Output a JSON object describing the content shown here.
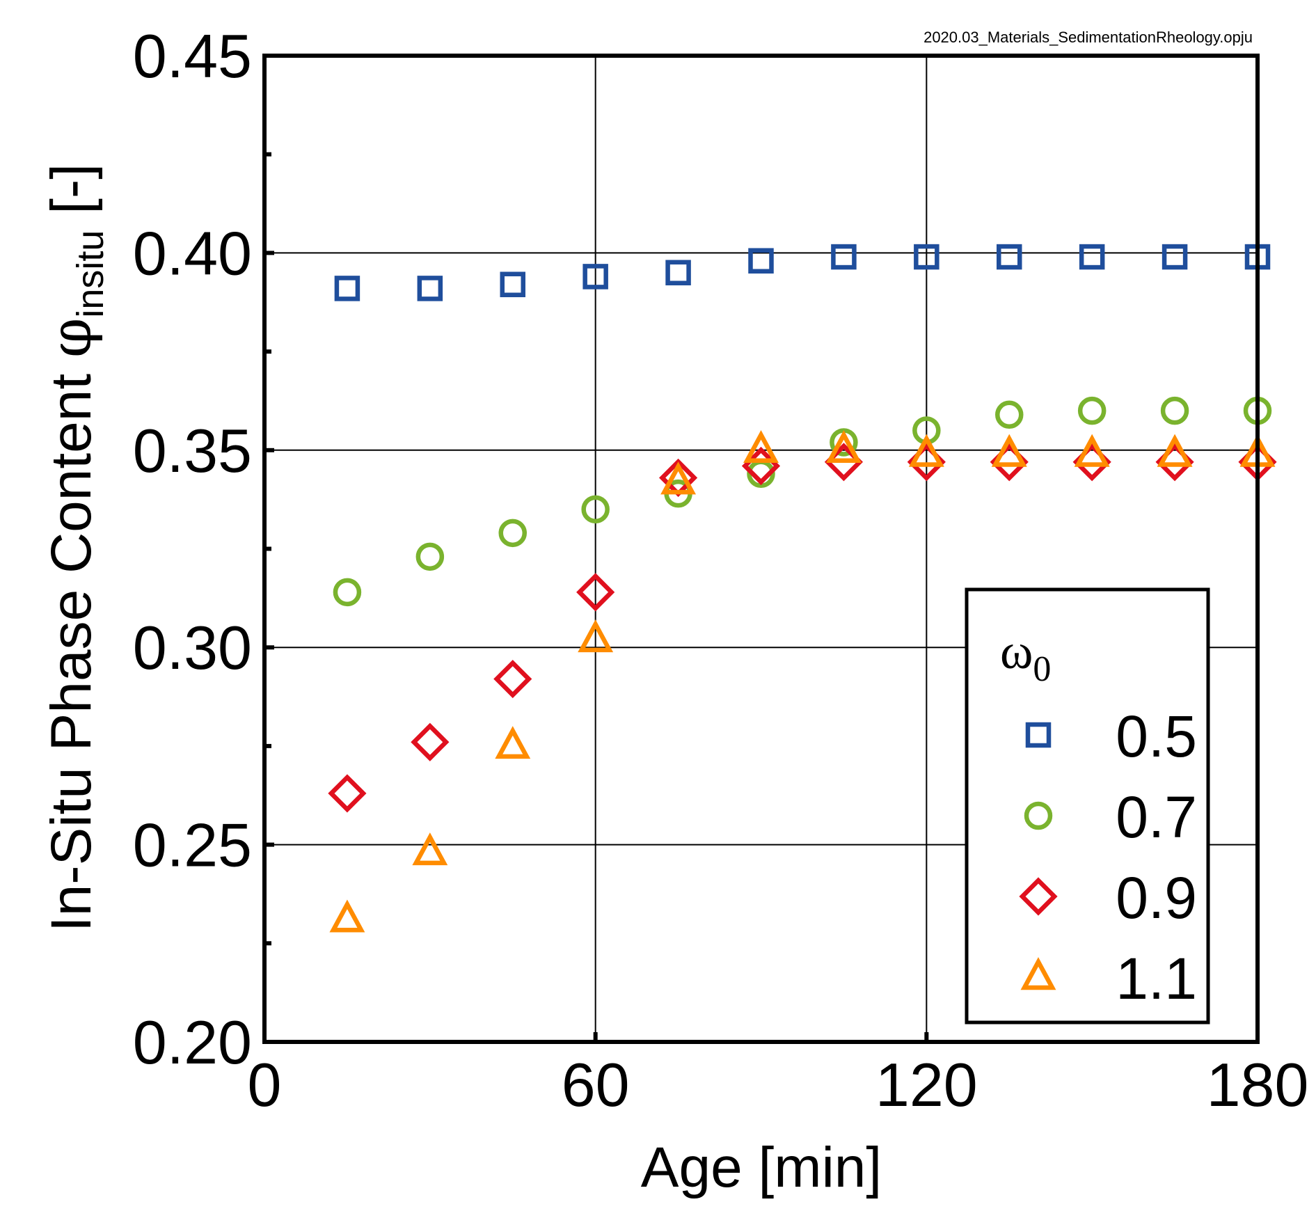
{
  "filename": "2020.03_Materials_SedimentationRheology.opju",
  "chart_data": {
    "type": "scatter",
    "xlabel": "Age [min]",
    "ylabel_prefix": "In-Situ Phase Content ",
    "ylabel_symbol": "φ",
    "ylabel_subscript": "insitu",
    "ylabel_suffix": " [-]",
    "xlim": [
      0,
      180
    ],
    "ylim": [
      0.2,
      0.45
    ],
    "x_ticks": [
      0,
      60,
      120,
      180
    ],
    "x_tick_labels": [
      "0",
      "60",
      "120",
      "180"
    ],
    "y_ticks": [
      0.2,
      0.25,
      0.3,
      0.35,
      0.4,
      0.45
    ],
    "y_tick_labels": [
      "0.20",
      "0.25",
      "0.30",
      "0.35",
      "0.40",
      "0.45"
    ],
    "x_grid": [
      60,
      120
    ],
    "y_grid": [
      0.25,
      0.3,
      0.35,
      0.4
    ],
    "legend_title_symbol": "ω",
    "legend_title_subscript": "0",
    "legend_position": "lower-right",
    "x": [
      15,
      30,
      45,
      60,
      75,
      90,
      105,
      120,
      135,
      150,
      165,
      180
    ],
    "series": [
      {
        "name": "0.5",
        "marker": "square",
        "color": "#1F4E9C",
        "values": [
          0.391,
          0.391,
          0.392,
          0.394,
          0.395,
          0.398,
          0.399,
          0.399,
          0.399,
          0.399,
          0.399,
          0.399
        ]
      },
      {
        "name": "0.7",
        "marker": "circle",
        "color": "#7AB32E",
        "values": [
          0.314,
          0.323,
          0.329,
          0.335,
          0.339,
          0.344,
          0.352,
          0.355,
          0.359,
          0.36,
          0.36,
          0.36
        ]
      },
      {
        "name": "0.9",
        "marker": "diamond",
        "color": "#E0101E",
        "values": [
          0.263,
          0.276,
          0.292,
          0.314,
          0.343,
          0.346,
          0.347,
          0.347,
          0.347,
          0.347,
          0.347,
          0.347
        ]
      },
      {
        "name": "1.1",
        "marker": "triangle",
        "color": "#FF8C00",
        "values": [
          0.231,
          0.248,
          0.275,
          0.302,
          0.342,
          0.35,
          0.35,
          0.349,
          0.349,
          0.349,
          0.349,
          0.349
        ]
      }
    ]
  }
}
